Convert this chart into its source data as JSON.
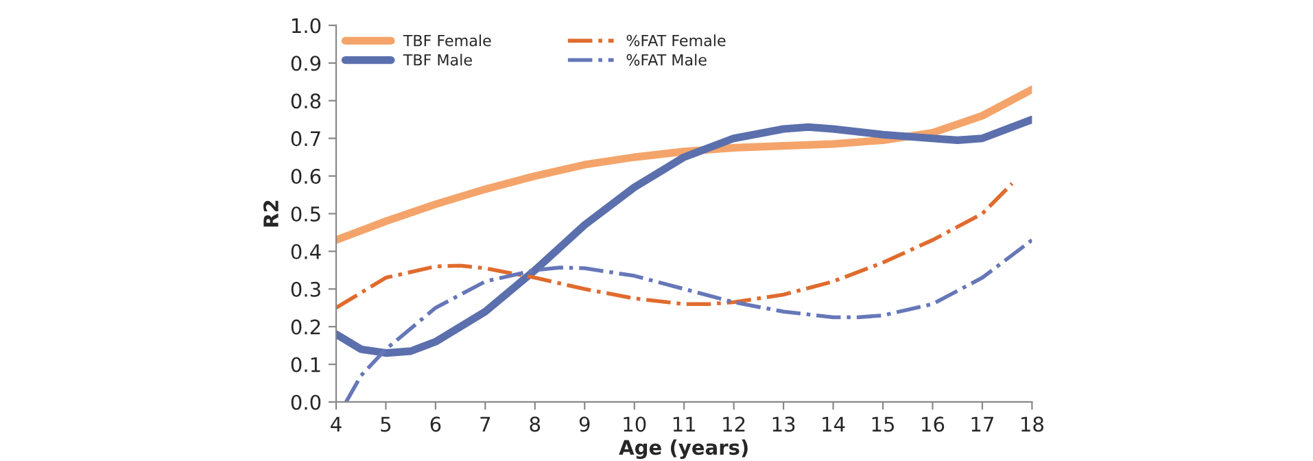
{
  "chart_data": {
    "type": "line",
    "xlabel": "Age (years)",
    "ylabel": "R2",
    "xlim": [
      4,
      18
    ],
    "xticks": [
      4,
      5,
      6,
      7,
      8,
      9,
      10,
      11,
      12,
      13,
      14,
      15,
      16,
      17,
      18
    ],
    "ylim": [
      0,
      1
    ],
    "yticks": [
      {
        "value": 0,
        "label": "0.0"
      },
      {
        "value": 0.1,
        "label": "0.1"
      },
      {
        "value": 0.2,
        "label": "0.2"
      },
      {
        "value": 0.3,
        "label": "0.3"
      },
      {
        "value": 0.4,
        "label": "0.4"
      },
      {
        "value": 0.5,
        "label": "0.5"
      },
      {
        "value": 0.6,
        "label": "0.6"
      },
      {
        "value": 0.7,
        "label": "0.7"
      },
      {
        "value": 0.8,
        "label": "0.8"
      },
      {
        "value": 0.9,
        "label": "0.9"
      },
      {
        "value": 1,
        "label": "1.0"
      }
    ],
    "grid": false,
    "legend": "top left",
    "marker": "none",
    "series": [
      {
        "name": "TBF Female",
        "color": "#f4a46a",
        "line_style": "solid",
        "x": [
          4,
          5,
          6,
          7,
          8,
          9,
          10,
          11,
          12,
          13,
          14,
          15,
          16,
          17,
          18
        ],
        "values": [
          0.43,
          0.48,
          0.525,
          0.565,
          0.6,
          0.63,
          0.65,
          0.665,
          0.675,
          0.68,
          0.685,
          0.695,
          0.715,
          0.76,
          0.83
        ]
      },
      {
        "name": "TBF Male",
        "color": "#5b6fad",
        "line_style": "solid",
        "x": [
          4,
          4.5,
          5,
          5.5,
          6,
          7,
          8,
          9,
          10,
          11,
          12,
          13,
          13.5,
          14,
          15,
          16,
          16.5,
          17,
          18
        ],
        "values": [
          0.18,
          0.14,
          0.13,
          0.135,
          0.16,
          0.24,
          0.35,
          0.47,
          0.57,
          0.65,
          0.7,
          0.725,
          0.73,
          0.725,
          0.71,
          0.7,
          0.695,
          0.7,
          0.75
        ]
      },
      {
        "name": "%FAT Female",
        "color": "#e06b2e",
        "line_style": "dashdot",
        "x": [
          4,
          5,
          6,
          6.5,
          7,
          8,
          9,
          10,
          11,
          11.5,
          12,
          13,
          14,
          15,
          16,
          17,
          17.6
        ],
        "values": [
          0.25,
          0.33,
          0.36,
          0.362,
          0.355,
          0.33,
          0.3,
          0.275,
          0.26,
          0.26,
          0.265,
          0.285,
          0.32,
          0.37,
          0.43,
          0.5,
          0.58
        ]
      },
      {
        "name": "%FAT Male",
        "color": "#6677b8",
        "line_style": "dashdot",
        "x": [
          4.2,
          4.5,
          5,
          6,
          7,
          8,
          8.5,
          9,
          10,
          11,
          12,
          13,
          14,
          14.5,
          15,
          16,
          17,
          18
        ],
        "values": [
          0.0,
          0.07,
          0.14,
          0.25,
          0.32,
          0.35,
          0.357,
          0.355,
          0.335,
          0.3,
          0.265,
          0.24,
          0.225,
          0.225,
          0.23,
          0.26,
          0.33,
          0.43
        ]
      }
    ]
  }
}
